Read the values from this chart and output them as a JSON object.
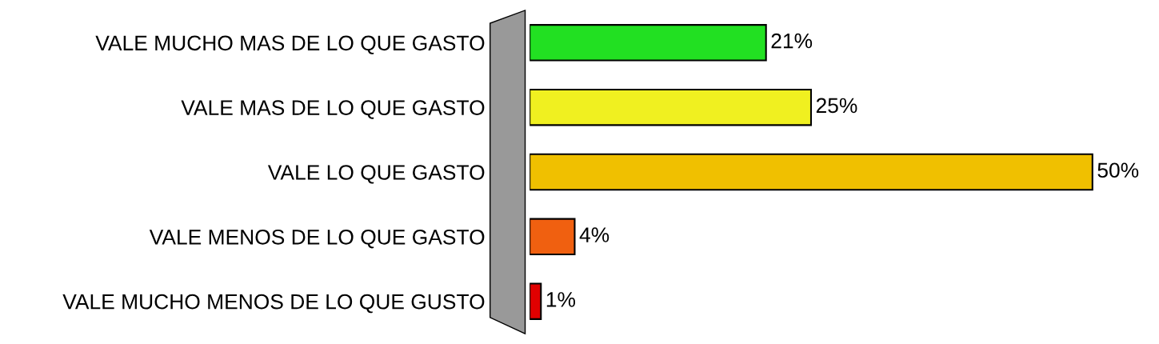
{
  "chart_data": {
    "type": "bar",
    "orientation": "horizontal",
    "categories": [
      "VALE MUCHO MAS DE LO QUE GASTO",
      "VALE MAS DE LO QUE GASTO",
      "VALE LO QUE GASTO",
      "VALE MENOS DE LO QUE GASTO",
      "VALE MUCHO MENOS DE LO QUE GUSTO"
    ],
    "values": [
      21,
      25,
      50,
      4,
      1
    ],
    "value_labels": [
      "21%",
      "25%",
      "50%",
      "4%",
      "1%"
    ],
    "colors": [
      "#22e022",
      "#f0f020",
      "#f0c000",
      "#f06010",
      "#e00000"
    ],
    "grid": false,
    "legend": false
  }
}
